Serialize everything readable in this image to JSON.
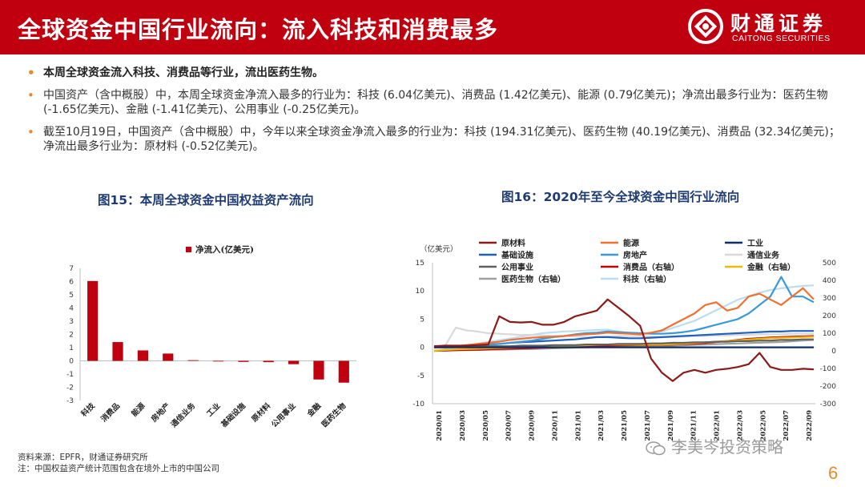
{
  "header": {
    "title": "全球资金中国行业流向：流入科技和消费最多",
    "logo_cn": "财通证券",
    "logo_en": "CAITONG SECURITIES",
    "brand_color": "#c0000f"
  },
  "bullets": [
    "本周全球资金流入科技、消费品等行业，流出医药生物。",
    "中国资产（含中概股）中，本周全球资金净流入最多的行业为：科技 (6.04亿美元)、消费品 (1.42亿美元)、能源 (0.79亿美元)；净流出最多行业为：医药生物 (-1.65亿美元)、金融 (-1.41亿美元)、公用事业 (-0.25亿美元)。",
    "截至10月19日，中国资产（含中概股）中，今年以来全球资金净流入最多的行业为：科技 (194.31亿美元)、医药生物 (40.19亿美元)、消费品 (32.34亿美元)；净流出最多行业为：原材料 (-0.52亿美元)。"
  ],
  "fig15": {
    "title": "图15：本周全球资金中国权益资产流向"
  },
  "fig16": {
    "title": "图16：2020年至今全球资金中国行业流向"
  },
  "chart_data": [
    {
      "type": "bar",
      "legend": [
        "净流入(亿美元)"
      ],
      "legend_position": "top-right",
      "categories": [
        "科技",
        "消费品",
        "能源",
        "房地产",
        "通信业务",
        "工业",
        "基础设施",
        "原材料",
        "公用事业",
        "金融",
        "医药生物"
      ],
      "series": [
        {
          "name": "净流入(亿美元)",
          "color": "#c0000f",
          "values": [
            6.04,
            1.42,
            0.79,
            0.55,
            0.05,
            0.0,
            -0.08,
            -0.1,
            -0.25,
            -1.41,
            -1.65
          ]
        }
      ],
      "ylim": [
        -3,
        7
      ],
      "yticks": [
        "7",
        "6",
        "5",
        "4",
        "3",
        "2",
        "1",
        "0",
        "-1",
        "-2",
        "-3"
      ],
      "grid": false
    },
    {
      "type": "line",
      "ylabel": "（亿美元）",
      "ylim": [
        -10,
        15
      ],
      "ylim_right": [
        -300,
        500
      ],
      "yticks_left": [
        "15",
        "10",
        "5",
        "0",
        "-5",
        "-10"
      ],
      "yticks_right": [
        "500",
        "400",
        "300",
        "200",
        "100",
        "0",
        "-100",
        "-200",
        "-300"
      ],
      "x_labels": [
        "2020/01",
        "2020/03",
        "2020/05",
        "2020/07",
        "2020/09",
        "2020/11",
        "2021/01",
        "2021/03",
        "2021/05",
        "2021/07",
        "2021/09",
        "2021/11",
        "2022/01",
        "2022/03",
        "2022/05",
        "2022/07",
        "2022/09"
      ],
      "legend": [
        "原材料",
        "能源",
        "工业",
        "基础设施",
        "房地产",
        "通信业务",
        "公用事业",
        "消费品（右轴）",
        "金融（右轴）",
        "医药生物（右轴）",
        "科技（右轴）"
      ],
      "series": [
        {
          "name": "原材料",
          "axis": "left",
          "color": "#8b1a1a",
          "values": [
            0.2,
            0.3,
            0.3,
            0.3,
            0.4,
            0.5,
            5.5,
            4.5,
            4.4,
            4.5,
            4.0,
            4.0,
            4.5,
            5.5,
            6.0,
            6.5,
            8.5,
            7.0,
            5.5,
            3.8,
            -2.0,
            -4.5,
            -6.0,
            -4.5,
            -4.0,
            -4.5,
            -4.0,
            -3.8,
            -3.5,
            -3.0,
            -1.0,
            -3.5,
            -4.0,
            -4.0,
            -3.8,
            -3.9
          ]
        },
        {
          "name": "能源",
          "axis": "left",
          "color": "#f07030",
          "values": [
            0.1,
            0.2,
            0.2,
            0.4,
            0.6,
            0.8,
            1.0,
            1.3,
            1.5,
            1.7,
            1.8,
            1.9,
            2.0,
            2.2,
            2.3,
            2.4,
            2.6,
            2.5,
            2.4,
            2.3,
            2.6,
            3.0,
            4.0,
            5.0,
            6.0,
            7.5,
            8.0,
            6.5,
            7.0,
            9.0,
            9.5,
            8.5,
            7.5,
            9.0,
            10.5,
            8.5
          ]
        },
        {
          "name": "工业",
          "axis": "left",
          "color": "#0d2d6b",
          "values": [
            0,
            0,
            0,
            0,
            0,
            0,
            0,
            0,
            0,
            0,
            0,
            0,
            0,
            0,
            0,
            0,
            0,
            0,
            0,
            0,
            0,
            0,
            0,
            0,
            0,
            0,
            0,
            0,
            0,
            0,
            0,
            0,
            0,
            0,
            0,
            0
          ]
        },
        {
          "name": "基础设施",
          "axis": "left",
          "color": "#2060c0",
          "values": [
            0.1,
            0.2,
            0.2,
            0.3,
            0.4,
            0.5,
            0.6,
            0.8,
            0.9,
            1.0,
            1.1,
            1.2,
            1.3,
            1.4,
            1.6,
            1.8,
            1.8,
            1.7,
            1.6,
            1.6,
            1.7,
            1.8,
            1.9,
            2.0,
            2.1,
            2.2,
            2.3,
            2.4,
            2.5,
            2.6,
            2.7,
            2.8,
            2.8,
            2.9,
            2.9,
            2.9
          ]
        },
        {
          "name": "房地产",
          "axis": "left",
          "color": "#3a9ad9",
          "values": [
            0.0,
            0.1,
            0.2,
            0.3,
            0.4,
            0.5,
            0.6,
            0.8,
            1.0,
            1.2,
            1.5,
            1.8,
            2.0,
            2.3,
            2.5,
            2.6,
            2.8,
            2.7,
            2.6,
            2.5,
            2.4,
            2.4,
            2.5,
            2.7,
            3.0,
            3.5,
            4.0,
            4.5,
            5.0,
            6.0,
            7.5,
            9.0,
            12.5,
            9.0,
            9.0,
            8.0
          ]
        },
        {
          "name": "通信业务",
          "axis": "left",
          "color": "#d9d9d9",
          "values": [
            0.1,
            0.2,
            3.5,
            3.0,
            2.8,
            2.5,
            2.4,
            2.3,
            2.2,
            2.2,
            2.1,
            2.0,
            2.0,
            1.9,
            1.8,
            1.8,
            1.9,
            2.0,
            2.0,
            2.0,
            1.9,
            1.8,
            1.8,
            1.9,
            2.0,
            2.0,
            2.1,
            2.1,
            2.2,
            2.2,
            2.3,
            2.3,
            2.3,
            2.4,
            2.4,
            2.4
          ]
        },
        {
          "name": "公用事业",
          "axis": "left",
          "color": "#606060",
          "values": [
            0.0,
            0.0,
            0.1,
            0.1,
            0.1,
            0.2,
            0.2,
            0.2,
            0.3,
            0.3,
            0.3,
            0.4,
            0.4,
            0.4,
            0.5,
            0.5,
            0.5,
            0.6,
            0.6,
            0.6,
            0.7,
            0.7,
            0.8,
            0.8,
            0.9,
            0.9,
            1.0,
            1.0,
            1.1,
            1.1,
            1.2,
            1.2,
            1.3,
            1.3,
            1.4,
            1.4
          ]
        },
        {
          "name": "消费品（右轴）",
          "axis": "right",
          "color": "#c00000",
          "values": [
            0,
            2,
            4,
            5,
            6,
            8,
            10,
            12,
            14,
            16,
            18,
            20,
            22,
            24,
            26,
            28,
            30,
            31,
            32,
            32,
            33,
            34,
            36,
            38,
            40,
            44,
            50,
            56,
            62,
            68,
            72,
            76,
            78,
            80,
            82,
            84
          ]
        },
        {
          "name": "金融（右轴）",
          "axis": "right",
          "color": "#f0b800",
          "values": [
            0,
            5,
            8,
            10,
            12,
            14,
            16,
            18,
            20,
            22,
            24,
            26,
            28,
            30,
            32,
            34,
            36,
            36,
            35,
            34,
            35,
            36,
            38,
            40,
            44,
            48,
            52,
            56,
            60,
            64,
            68,
            72,
            74,
            76,
            78,
            80
          ]
        },
        {
          "name": "医药生物（右轴）",
          "axis": "right",
          "color": "#a0a0a0",
          "values": [
            0,
            2,
            3,
            4,
            5,
            6,
            7,
            8,
            9,
            10,
            12,
            14,
            16,
            18,
            20,
            22,
            24,
            25,
            26,
            26,
            27,
            28,
            30,
            32,
            34,
            36,
            38,
            40,
            42,
            44,
            46,
            48,
            50,
            54,
            58,
            62
          ]
        },
        {
          "name": "科技（右轴）",
          "axis": "right",
          "color": "#bcdcf4",
          "values": [
            0,
            10,
            20,
            30,
            40,
            50,
            60,
            70,
            80,
            90,
            100,
            105,
            110,
            112,
            115,
            118,
            120,
            110,
            100,
            95,
            100,
            110,
            130,
            150,
            170,
            200,
            230,
            260,
            290,
            310,
            330,
            345,
            355,
            362,
            368,
            372
          ]
        }
      ]
    }
  ],
  "source": {
    "line1": "资料来源：EPFR，财通证券研究所",
    "line2": "注：中国权益资产统计范围包含在境外上市的中国公司"
  },
  "watermark": "李美岑投资策略",
  "page_number": "6"
}
